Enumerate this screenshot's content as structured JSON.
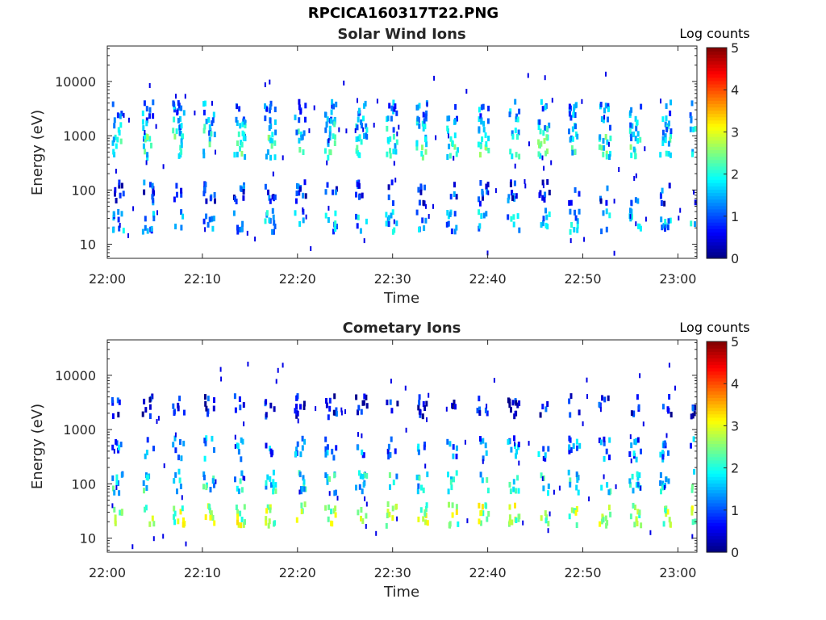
{
  "figure_title": "RPCICA160317T22.PNG",
  "colors": {
    "axis": "#262626",
    "colormap": "jet"
  },
  "chart_data": [
    {
      "type": "heatmap",
      "title": "Solar Wind Ions",
      "xlabel": "Time",
      "ylabel": "Energy (eV)",
      "x_ticks": [
        "22:00",
        "22:10",
        "22:20",
        "22:30",
        "22:40",
        "22:50",
        "23:00"
      ],
      "x_tick_minutes": [
        0,
        10,
        20,
        30,
        40,
        50,
        60
      ],
      "xlim_minutes": [
        0,
        62
      ],
      "yscale": "log",
      "ylim": [
        5.5,
        45000
      ],
      "y_ticks": [
        "10",
        "100",
        "1000",
        "10000"
      ],
      "y_tick_values": [
        10,
        100,
        1000,
        10000
      ],
      "colorbar": {
        "label": "Log counts",
        "range": [
          0,
          5
        ],
        "ticks": [
          "0",
          "1",
          "2",
          "3",
          "4",
          "5"
        ]
      },
      "scan_period_minutes": 3.2,
      "bands": [
        {
          "energy_ev": 3000,
          "log_counts": 1.2
        },
        {
          "energy_ev": 1500,
          "log_counts": 1.6
        },
        {
          "energy_ev": 700,
          "log_counts": 2.0
        },
        {
          "energy_ev": 100,
          "log_counts": 0.8
        },
        {
          "energy_ev": 30,
          "log_counts": 1.4
        }
      ]
    },
    {
      "type": "heatmap",
      "title": "Cometary Ions",
      "xlabel": "Time",
      "ylabel": "Energy (eV)",
      "x_ticks": [
        "22:00",
        "22:10",
        "22:20",
        "22:30",
        "22:40",
        "22:50",
        "23:00"
      ],
      "x_tick_minutes": [
        0,
        10,
        20,
        30,
        40,
        50,
        60
      ],
      "xlim_minutes": [
        0,
        62
      ],
      "yscale": "log",
      "ylim": [
        5.5,
        45000
      ],
      "y_ticks": [
        "10",
        "100",
        "1000",
        "10000"
      ],
      "y_tick_values": [
        10,
        100,
        1000,
        10000
      ],
      "colorbar": {
        "label": "Log counts",
        "range": [
          0,
          5
        ],
        "ticks": [
          "0",
          "1",
          "2",
          "3",
          "4",
          "5"
        ]
      },
      "scan_period_minutes": 3.2,
      "bands": [
        {
          "energy_ev": 3000,
          "log_counts": 0.6
        },
        {
          "energy_ev": 500,
          "log_counts": 1.2
        },
        {
          "energy_ev": 120,
          "log_counts": 1.8
        },
        {
          "energy_ev": 30,
          "log_counts": 2.6
        }
      ]
    }
  ]
}
